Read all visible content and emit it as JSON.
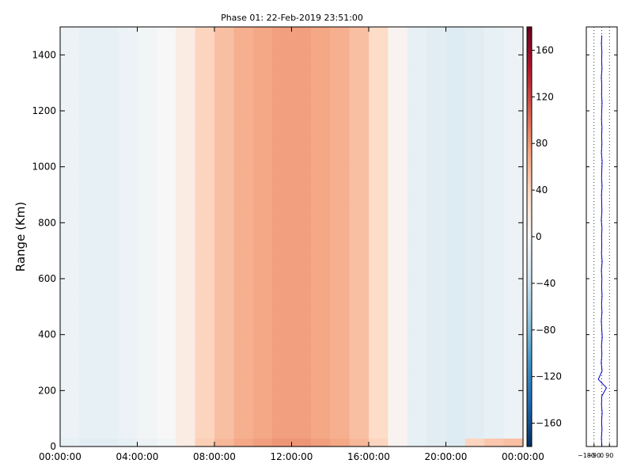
{
  "figure": {
    "title": "Phase 01: 22-Feb-2019 23:51:00"
  },
  "chart_data": [
    {
      "type": "heatmap",
      "title": "Phase 01: 22-Feb-2019 23:51:00",
      "xlabel": "",
      "ylabel": "Range (Km)",
      "x_ticks": [
        "00:00:00",
        "04:00:00",
        "08:00:00",
        "12:00:00",
        "16:00:00",
        "20:00:00",
        "00:00:00"
      ],
      "y_ticks": [
        0,
        200,
        400,
        600,
        800,
        1000,
        1200,
        1400
      ],
      "x_range_hours": [
        0,
        24
      ],
      "ylim": [
        0,
        1500
      ],
      "colormap": "RdBu_r",
      "value_range": [
        -180,
        180
      ],
      "colorbar_ticks": [
        160,
        120,
        80,
        40,
        0,
        -40,
        -80,
        -120,
        -160
      ],
      "cell_range_step_km": 30,
      "rows_range_km": [
        0,
        30,
        60,
        90,
        120,
        150,
        180,
        210,
        240,
        270,
        300,
        330,
        360,
        390,
        420,
        450,
        480,
        510,
        540,
        570,
        600,
        630,
        660,
        690,
        720,
        750,
        780,
        810,
        840,
        870,
        900,
        930,
        960,
        990,
        1020,
        1050,
        1080,
        1110,
        1140,
        1170,
        1200,
        1230,
        1260,
        1290,
        1320,
        1350,
        1380,
        1410,
        1440,
        1470
      ],
      "columns_time_hours": [
        0,
        1,
        2,
        3,
        4,
        5,
        6,
        7,
        8,
        9,
        10,
        11,
        12,
        13,
        14,
        15,
        16,
        17,
        18,
        19,
        20,
        21,
        22,
        23
      ],
      "values_by_hour_approx": [
        [
          -15,
          -20,
          -20,
          -15,
          -10,
          -5,
          15,
          45,
          60,
          70,
          75,
          80,
          80,
          75,
          70,
          60,
          40,
          5,
          -15,
          -20,
          -25,
          40,
          50,
          55
        ],
        [
          -10,
          -15,
          -15,
          -10,
          -5,
          0,
          15,
          40,
          55,
          65,
          70,
          75,
          75,
          70,
          65,
          55,
          35,
          5,
          -15,
          -20,
          -25,
          -20,
          -15,
          -10
        ]
      ]
    },
    {
      "type": "line",
      "title": "",
      "xlabel": "",
      "ylabel": "",
      "x_ticks": [
        "-180",
        "-90",
        "0",
        "90"
      ],
      "xlim": [
        -180,
        180
      ],
      "ylim": [
        0,
        1500
      ],
      "y_ticks": [
        0,
        200,
        400,
        600,
        800,
        1000,
        1200,
        1400
      ],
      "grid_x_dotted": [
        -90,
        0,
        90
      ],
      "series": [
        {
          "color": "#0000cc",
          "x": [
            2,
            -4,
            3,
            -2,
            5,
            -3,
            1,
            55,
            -40,
            4,
            -6,
            2,
            -3,
            6,
            0,
            -5,
            3,
            -2,
            4,
            -1,
            2,
            -4,
            5,
            -3,
            1,
            -2,
            3,
            -5,
            2,
            0,
            -3,
            4,
            -2,
            1,
            5,
            -4,
            2,
            -1,
            3,
            -3,
            0,
            4,
            -2,
            1,
            -5,
            3,
            -1,
            2,
            -4,
            1
          ],
          "y": [
            0,
            30,
            60,
            90,
            120,
            150,
            180,
            210,
            240,
            270,
            300,
            330,
            360,
            390,
            420,
            450,
            480,
            510,
            540,
            570,
            600,
            630,
            660,
            690,
            720,
            750,
            780,
            810,
            840,
            870,
            900,
            930,
            960,
            990,
            1020,
            1050,
            1080,
            1110,
            1140,
            1170,
            1200,
            1230,
            1260,
            1290,
            1320,
            1350,
            1380,
            1410,
            1440,
            1470
          ]
        }
      ]
    }
  ]
}
